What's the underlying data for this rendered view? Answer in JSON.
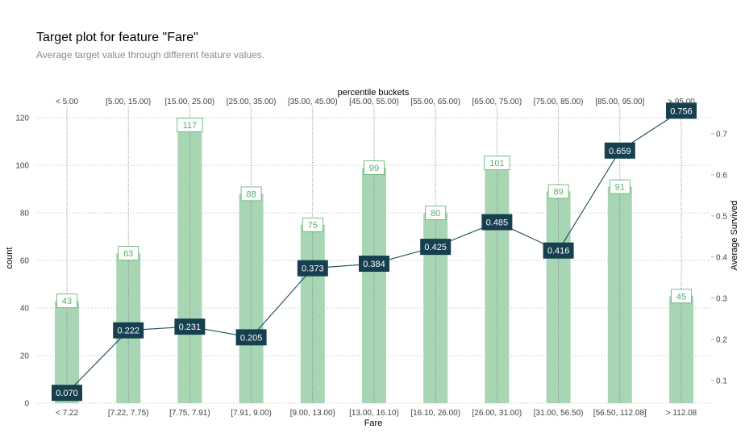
{
  "title": "Target plot for feature \"Fare\"",
  "subtitle": "Average target value through different feature values.",
  "colors": {
    "bar": "#a8d6b4",
    "bar_label_text": "#5aad6c",
    "bar_label_border": "#5aad6c",
    "line": "#1a4a5a",
    "marker_box": "#163f4f",
    "grid": "#c8c8c8",
    "vline": "#7a7a7a"
  },
  "chart_data": {
    "type": "bar",
    "x": {
      "label": "Fare",
      "categories": [
        "< 7.22",
        "[7.22, 7.75)",
        "[7.75, 7.91)",
        "[7.91, 9.00)",
        "[9.00, 13.00)",
        "[13.00, 16.10)",
        "[16.10, 26.00)",
        "[26.00, 31.00)",
        "[31.00, 56.50)",
        "[56.50, 112.08]",
        "> 112.08"
      ]
    },
    "x_top": {
      "label": "percentile buckets",
      "categories": [
        "< 5.00",
        "[5.00, 15.00)",
        "[15.00, 25.00)",
        "[25.00, 35.00)",
        "[35.00, 45.00)",
        "[45.00, 55.00)",
        "[55.00, 65.00)",
        "[65.00, 75.00)",
        "[75.00, 85.00)",
        "[85.00, 95.00]",
        "> 95.00"
      ]
    },
    "y_left": {
      "label": "count",
      "ticks": [
        0,
        20,
        40,
        60,
        80,
        100,
        120
      ],
      "lim": [
        0,
        120
      ]
    },
    "y_right": {
      "label": "Average Survived",
      "ticks": [
        0.1,
        0.2,
        0.3,
        0.4,
        0.5,
        0.6,
        0.7
      ],
      "tick_labels": [
        "0.1",
        "0.2",
        "0.3",
        "0.4",
        "0.5",
        "0.6",
        "0.7"
      ],
      "lim": [
        0.045,
        0.782
      ]
    },
    "series": [
      {
        "name": "count",
        "type": "bar",
        "values": [
          43,
          63,
          117,
          88,
          75,
          99,
          80,
          101,
          89,
          91,
          45
        ]
      },
      {
        "name": "Average Survived",
        "type": "line",
        "values": [
          0.07,
          0.222,
          0.231,
          0.205,
          0.373,
          0.384,
          0.425,
          0.485,
          0.416,
          0.659,
          0.756
        ],
        "labels": [
          "0.070",
          "0.222",
          "0.231",
          "0.205",
          "0.373",
          "0.384",
          "0.425",
          "0.485",
          "0.416",
          "0.659",
          "0.756"
        ]
      }
    ],
    "grid": true
  }
}
